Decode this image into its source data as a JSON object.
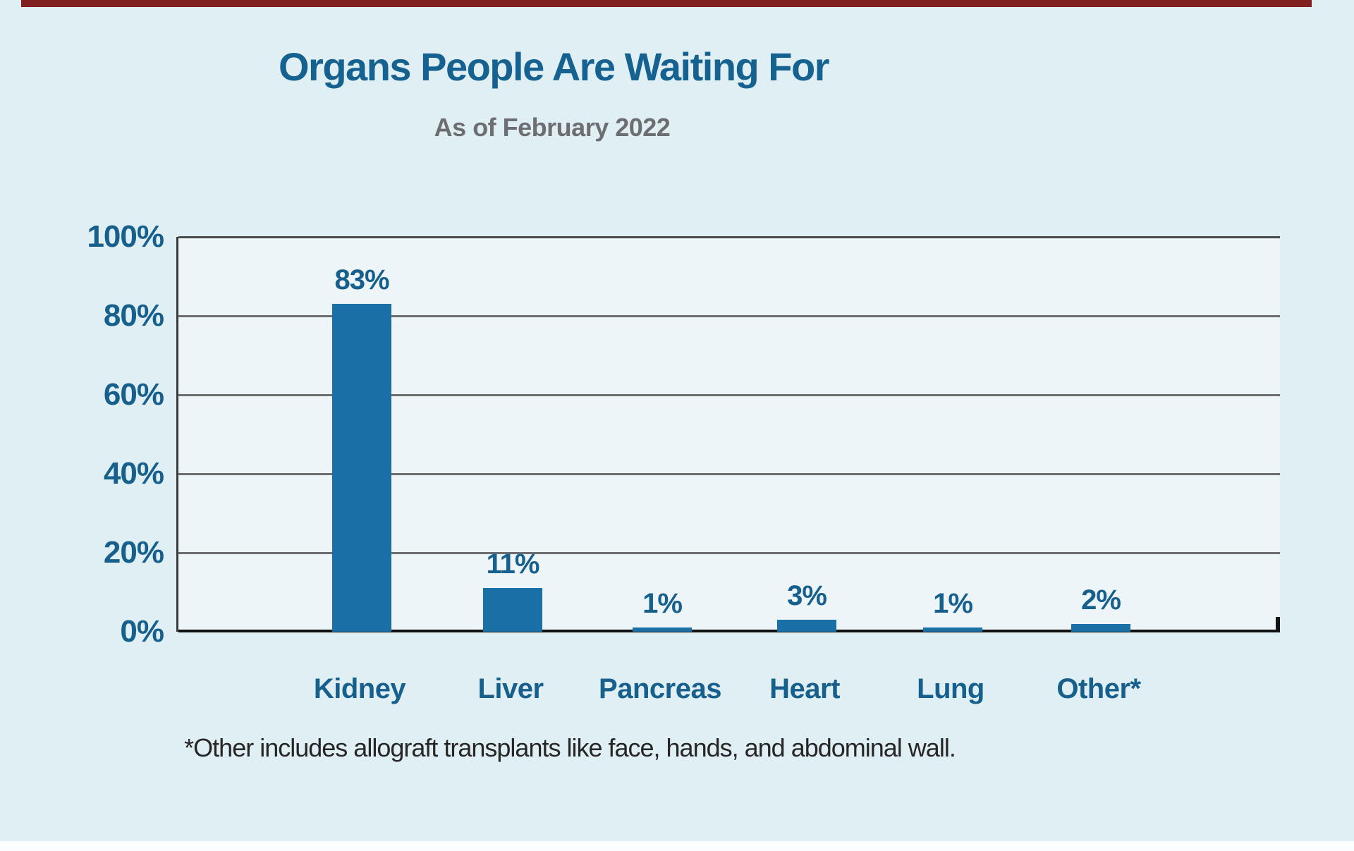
{
  "page": {
    "top_accent_color": "#80201f",
    "background": "#e0eff4",
    "bottom_strip_color": "#fbfdfe"
  },
  "chart_data": {
    "type": "bar",
    "title": "Organs People Are Waiting For",
    "subtitle": "As of February 2022",
    "categories": [
      "Kidney",
      "Liver",
      "Pancreas",
      "Heart",
      "Lung",
      "Other*"
    ],
    "values": [
      83,
      11,
      1,
      3,
      1,
      2
    ],
    "value_labels": [
      "83%",
      "11%",
      "1%",
      "3%",
      "1%",
      "2%"
    ],
    "yticks": [
      "100%",
      "80%",
      "60%",
      "40%",
      "20%",
      "0%"
    ],
    "ylim": [
      0,
      100
    ],
    "grid": true,
    "legend": "none",
    "footnote": "*Other includes allograft transplants like face, hands, and abdominal wall.",
    "colors": {
      "bar": "#1a6fa6",
      "title": "#15618f",
      "subtitle": "#6d6e71",
      "tick_labels": "#175f8c",
      "value_labels": "#175f8c",
      "category_labels": "#175f8c",
      "gridline": "#6e6e6e",
      "top_frame": "#4a4a4a",
      "axis_line": "#121212",
      "footnote": "#262626",
      "plot_background": "#edf5f8"
    }
  }
}
